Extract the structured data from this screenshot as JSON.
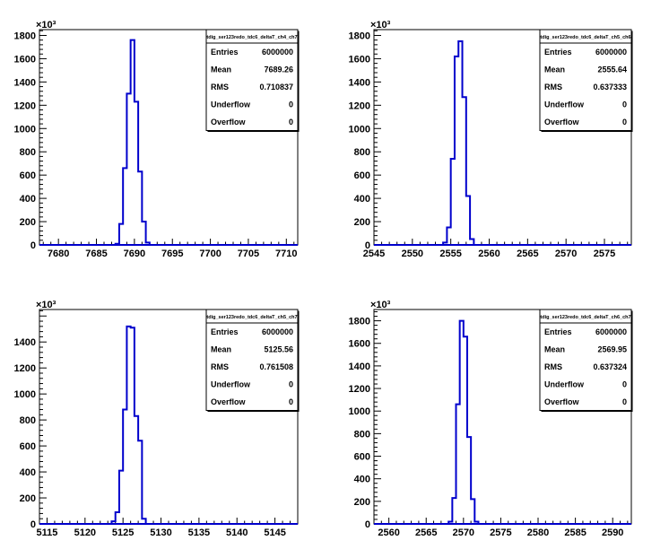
{
  "window": {
    "background": "#ffffff"
  },
  "style": {
    "histogram_color": "#0000cc",
    "axis_color": "#000000",
    "statbox_border": "#000000"
  },
  "chart_data": [
    {
      "type": "histogram",
      "title": "",
      "xlabel": "",
      "ylabel": "",
      "y_multiplier_label": "×10³",
      "xlim": [
        7677.5,
        7711.5
      ],
      "ylim": [
        0,
        1850
      ],
      "x_ticks": [
        7680,
        7685,
        7690,
        7695,
        7700,
        7705,
        7710
      ],
      "y_ticks": [
        0,
        200,
        400,
        600,
        800,
        1000,
        1200,
        1400,
        1600,
        1800
      ],
      "bin_width": 0.5,
      "bins": [
        {
          "x": 7687.5,
          "y": 10
        },
        {
          "x": 7688.0,
          "y": 180
        },
        {
          "x": 7688.5,
          "y": 660
        },
        {
          "x": 7689.0,
          "y": 1300
        },
        {
          "x": 7689.5,
          "y": 1760
        },
        {
          "x": 7690.0,
          "y": 1230
        },
        {
          "x": 7690.5,
          "y": 630
        },
        {
          "x": 7691.0,
          "y": 200
        },
        {
          "x": 7691.5,
          "y": 20
        }
      ],
      "stats": {
        "name": "tdig_ser123redo_tdc6_deltaT_ch4_ch7",
        "rows": [
          {
            "label": "Entries",
            "value": "6000000"
          },
          {
            "label": "Mean",
            "value": "7689.26"
          },
          {
            "label": "RMS",
            "value": "0.710837"
          },
          {
            "label": "Underflow",
            "value": "0"
          },
          {
            "label": "Overflow",
            "value": "0"
          }
        ]
      }
    },
    {
      "type": "histogram",
      "title": "",
      "xlabel": "",
      "ylabel": "",
      "y_multiplier_label": "×10³",
      "xlim": [
        2545,
        2578.5
      ],
      "ylim": [
        0,
        1850
      ],
      "x_ticks": [
        2545,
        2550,
        2555,
        2560,
        2565,
        2570,
        2575
      ],
      "y_ticks": [
        0,
        200,
        400,
        600,
        800,
        1000,
        1200,
        1400,
        1600,
        1800
      ],
      "bin_width": 0.5,
      "bins": [
        {
          "x": 2554.0,
          "y": 20
        },
        {
          "x": 2554.5,
          "y": 150
        },
        {
          "x": 2555.0,
          "y": 740
        },
        {
          "x": 2555.5,
          "y": 1620
        },
        {
          "x": 2556.0,
          "y": 1750
        },
        {
          "x": 2556.5,
          "y": 1270
        },
        {
          "x": 2557.0,
          "y": 420
        },
        {
          "x": 2557.5,
          "y": 50
        }
      ],
      "stats": {
        "name": "tdig_ser123redo_tdc6_deltaT_ch5_ch6",
        "rows": [
          {
            "label": "Entries",
            "value": "6000000"
          },
          {
            "label": "Mean",
            "value": "2555.64"
          },
          {
            "label": "RMS",
            "value": "0.637333"
          },
          {
            "label": "Underflow",
            "value": "0"
          },
          {
            "label": "Overflow",
            "value": "0"
          }
        ]
      }
    },
    {
      "type": "histogram",
      "title": "",
      "xlabel": "",
      "ylabel": "",
      "y_multiplier_label": "×10³",
      "xlim": [
        5114,
        5148
      ],
      "ylim": [
        0,
        1650
      ],
      "x_ticks": [
        5115,
        5120,
        5125,
        5130,
        5135,
        5140,
        5145
      ],
      "y_ticks": [
        0,
        200,
        400,
        600,
        800,
        1000,
        1200,
        1400
      ],
      "bin_width": 0.5,
      "bins": [
        {
          "x": 5123.5,
          "y": 20
        },
        {
          "x": 5124.0,
          "y": 90
        },
        {
          "x": 5124.5,
          "y": 410
        },
        {
          "x": 5125.0,
          "y": 880
        },
        {
          "x": 5125.5,
          "y": 1520
        },
        {
          "x": 5126.0,
          "y": 1510
        },
        {
          "x": 5126.5,
          "y": 830
        },
        {
          "x": 5127.0,
          "y": 640
        },
        {
          "x": 5127.5,
          "y": 40
        }
      ],
      "stats": {
        "name": "tdig_ser123redo_tdc6_deltaT_ch5_ch7",
        "rows": [
          {
            "label": "Entries",
            "value": "6000000"
          },
          {
            "label": "Mean",
            "value": "5125.56"
          },
          {
            "label": "RMS",
            "value": "0.761508"
          },
          {
            "label": "Underflow",
            "value": "0"
          },
          {
            "label": "Overflow",
            "value": "0"
          }
        ]
      }
    },
    {
      "type": "histogram",
      "title": "",
      "xlabel": "",
      "ylabel": "",
      "y_multiplier_label": "×10³",
      "xlim": [
        2558,
        2592.5
      ],
      "ylim": [
        0,
        1900
      ],
      "x_ticks": [
        2560,
        2565,
        2570,
        2575,
        2580,
        2585,
        2590
      ],
      "y_ticks": [
        0,
        200,
        400,
        600,
        800,
        1000,
        1200,
        1400,
        1600,
        1800
      ],
      "bin_width": 0.5,
      "bins": [
        {
          "x": 2568.0,
          "y": 20
        },
        {
          "x": 2568.5,
          "y": 230
        },
        {
          "x": 2569.0,
          "y": 1060
        },
        {
          "x": 2569.5,
          "y": 1800
        },
        {
          "x": 2570.0,
          "y": 1660
        },
        {
          "x": 2570.5,
          "y": 770
        },
        {
          "x": 2571.0,
          "y": 220
        },
        {
          "x": 2571.5,
          "y": 20
        }
      ],
      "stats": {
        "name": "tdig_ser123redo_tdc6_deltaT_ch6_ch7",
        "rows": [
          {
            "label": "Entries",
            "value": "6000000"
          },
          {
            "label": "Mean",
            "value": "2569.95"
          },
          {
            "label": "RMS",
            "value": "0.637324"
          },
          {
            "label": "Underflow",
            "value": "0"
          },
          {
            "label": "Overflow",
            "value": "0"
          }
        ]
      }
    }
  ]
}
